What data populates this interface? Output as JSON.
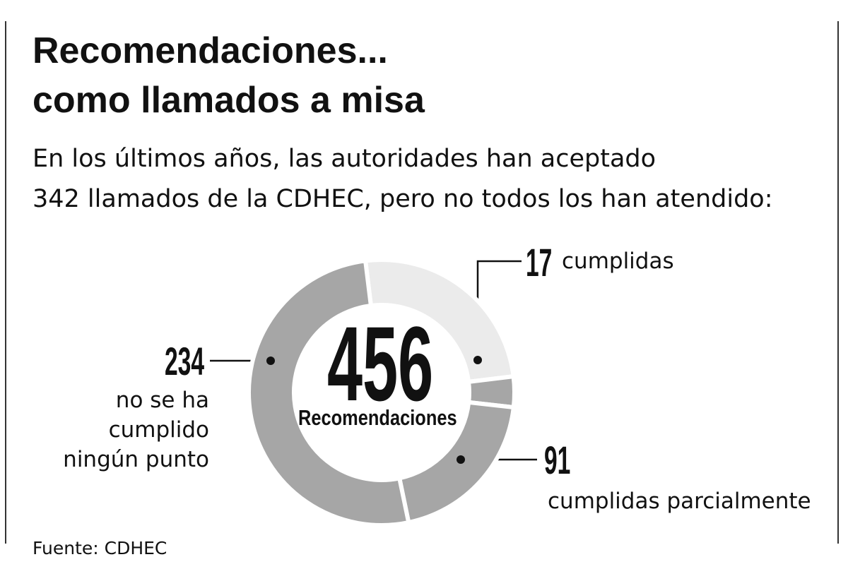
{
  "title": [
    "Recomendaciones...",
    "como llamados a misa"
  ],
  "subtitle": [
    "En los últimos años, las autoridades han aceptado",
    "342 llamados de la CDHEC, pero no todos los han atendido:"
  ],
  "source": "Fuente: CDHEC",
  "chart_data": {
    "type": "donut",
    "center_value": 456,
    "center_label": "Recomendaciones",
    "categories": [
      null,
      "cumplidas",
      "cumplidas parcialmente",
      "no se ha cumplido ningún punto"
    ],
    "values": [
      114,
      17,
      91,
      234
    ],
    "colors": [
      "#ebebeb",
      "#a6a6a6",
      "#a6a6a6",
      "#a6a6a6"
    ]
  }
}
